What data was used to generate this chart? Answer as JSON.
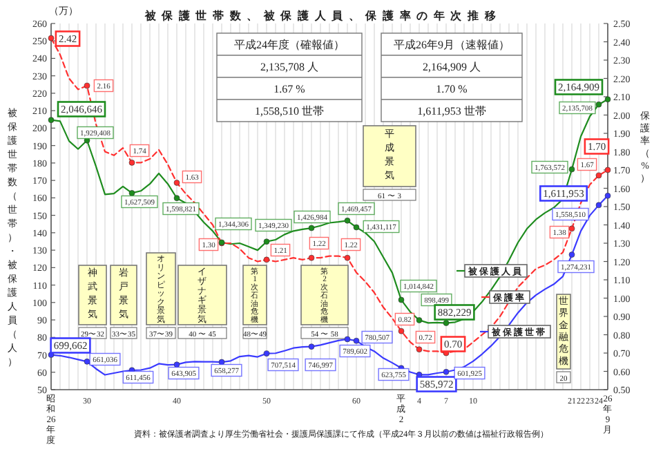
{
  "chart_data": {
    "type": "line",
    "title": "被保護世帯数、被保護人員、保護率の年次推移",
    "ylabel": "被保護世帯数（世帯）・被保護人員（人）",
    "y2label": "保護率（%）",
    "categories": [
      "昭和26年度",
      null,
      null,
      null,
      "30",
      null,
      null,
      null,
      null,
      null,
      null,
      null,
      null,
      null,
      "40",
      null,
      null,
      null,
      null,
      null,
      null,
      null,
      null,
      null,
      "50",
      null,
      null,
      null,
      null,
      null,
      null,
      null,
      null,
      null,
      "60",
      null,
      null,
      null,
      null,
      "平成2",
      null,
      "4",
      null,
      null,
      "7",
      null,
      null,
      "10",
      null,
      null,
      null,
      null,
      null,
      null,
      null,
      null,
      null,
      null,
      "21",
      "22",
      "23",
      "24",
      "26年9月"
    ],
    "ylim": [
      50,
      260
    ],
    "yticks": [
      50,
      60,
      70,
      80,
      90,
      100,
      110,
      120,
      130,
      140,
      150,
      160,
      170,
      180,
      190,
      200,
      210,
      220,
      230,
      240,
      250,
      260
    ],
    "y2lim": [
      0.5,
      2.5
    ],
    "y2ticks": [
      {
        "value": 0.5,
        "label": "0.50"
      },
      {
        "value": 0.6,
        "label": "0.60"
      },
      {
        "value": 0.7,
        "label": "0.70"
      },
      {
        "value": 0.8,
        "label": "0.80"
      },
      {
        "value": 0.9,
        "label": "0.90"
      },
      {
        "value": 1.0,
        "label": "1.00"
      },
      {
        "value": 1.1,
        "label": "1.10"
      },
      {
        "value": 1.2,
        "label": "1.20"
      },
      {
        "value": 1.3,
        "label": "1.30"
      },
      {
        "value": 1.4,
        "label": "1.40"
      },
      {
        "value": 1.5,
        "label": "1.50"
      },
      {
        "value": 1.6,
        "label": "1.60"
      },
      {
        "value": 1.7,
        "label": "1.70"
      },
      {
        "value": 1.8,
        "label": "1.80"
      },
      {
        "value": 1.9,
        "label": "1.90"
      },
      {
        "value": 2.0,
        "label": "2.00"
      },
      {
        "value": 2.1,
        "label": "2.10"
      },
      {
        "value": 2.2,
        "label": "2.20"
      },
      {
        "value": 2.3,
        "label": "2.30"
      },
      {
        "value": 2.4,
        "label": "2.40"
      },
      {
        "value": 2.5,
        "label": "2.50"
      }
    ],
    "grid": "x",
    "legend": "bottom right",
    "series": [
      {
        "name": "被保護人員",
        "color": "#1e8c1e",
        "line_style": "solid",
        "values": [
          204.66,
          204,
          192.6,
          188,
          192.94,
          178,
          162,
          162.5,
          166.5,
          162.75,
          164,
          168,
          174,
          168,
          159.88,
          157,
          152,
          146,
          141,
          134.43,
          133.5,
          134,
          132,
          130,
          134.92,
          136,
          139,
          141,
          142,
          142.7,
          144,
          145.7,
          146.2,
          146.95,
          143.11,
          140,
          135,
          126,
          117,
          101.48,
          94.6,
          89.85,
          88.3,
          88.5,
          88.22,
          88.7,
          90.5,
          94.7,
          100.4,
          107.2,
          114.8,
          124.3,
          134.4,
          142.3,
          147.6,
          151.4,
          154.4,
          159.3,
          176.36,
          195.2,
          206.7,
          213.57,
          216.49
        ]
      },
      {
        "name": "保護率",
        "color": "#ff3030",
        "line_style": "dashed",
        "axis": "y2",
        "values": [
          2.42,
          2.33,
          2.2,
          2.14,
          2.16,
          1.95,
          1.8,
          1.78,
          1.82,
          1.74,
          1.74,
          1.76,
          1.81,
          1.73,
          1.63,
          1.57,
          1.52,
          1.46,
          1.4,
          1.3,
          1.3,
          1.27,
          1.22,
          1.2,
          1.21,
          1.2,
          1.21,
          1.22,
          1.21,
          1.22,
          1.22,
          1.23,
          1.23,
          1.22,
          1.14,
          1.09,
          1.03,
          0.95,
          0.89,
          0.82,
          0.76,
          0.72,
          0.71,
          0.71,
          0.7,
          0.71,
          0.72,
          0.76,
          0.8,
          0.84,
          0.9,
          0.98,
          1.06,
          1.11,
          1.16,
          1.18,
          1.21,
          1.25,
          1.38,
          1.52,
          1.62,
          1.67,
          1.7
        ],
        "value_labels": [
          "2.42",
          null,
          null,
          null,
          "2.16",
          null,
          null,
          null,
          null,
          "1.74",
          null,
          null,
          null,
          null,
          "1.63",
          null,
          null,
          null,
          null,
          "1.30",
          null,
          null,
          null,
          null,
          "1.21",
          null,
          null,
          null,
          null,
          "1.22",
          null,
          null,
          null,
          "1.22",
          null,
          null,
          null,
          null,
          null,
          "0.82",
          null,
          "0.72",
          null,
          null,
          "0.70",
          null,
          null,
          null,
          null,
          null,
          null,
          null,
          null,
          null,
          null,
          null,
          null,
          null,
          "1.38",
          null,
          null,
          "1.67",
          "1.70"
        ]
      },
      {
        "name": "被保護世帯",
        "color": "#3a3aff",
        "line_style": "solid",
        "values": [
          69.97,
          69.5,
          68.5,
          67.3,
          66.1,
          62,
          58.5,
          59.5,
          60.5,
          61.15,
          61.3,
          62.4,
          64.9,
          64.2,
          64.39,
          65.7,
          66.1,
          66.0,
          66.0,
          65.83,
          66.5,
          69.0,
          69.6,
          68.8,
          70.75,
          70.9,
          72.3,
          73.9,
          74.5,
          74.7,
          75.6,
          76.9,
          78.2,
          78.96,
          78.05,
          74.6,
          72.0,
          68.1,
          65.4,
          62.38,
          60.1,
          58.6,
          58.6,
          59.5,
          60.19,
          61.3,
          63.1,
          66.3,
          70.4,
          75.1,
          80.5,
          87.1,
          94.1,
          99.9,
          104.2,
          107.6,
          110.5,
          114.9,
          127.42,
          141.0,
          149.9,
          155.85,
          161.2
        ]
      }
    ],
    "annotations": [
      "（万）",
      "平成24年度（確報値）",
      "2,135,708 人",
      "1.67 %",
      "1,558,510 世帯",
      "平成26年9月（速報値）",
      "2,164,909 人",
      "1.70 %",
      "1,611,953 世帯",
      "神武景気",
      "29〜32",
      "岩戸景気",
      "33〜35",
      "オリンピック景気",
      "37〜39",
      "イザナギ景気",
      "40 〜 45",
      "第1次石油危機",
      "48〜49",
      "第2次石油危機",
      "54 〜 58",
      "平成景気",
      "61 〜 3",
      "世界金融危機",
      "20",
      "資料：被保護者調査より厚生労働省社会・援護局保護課にて作成（平成24年３月以前の数値は福祉行政報告例）",
      "2,046,646",
      "1,929,408",
      "1,627,509",
      "1,598,821",
      "1,344,306",
      "1,349,230",
      "1,426,984",
      "1,469,457",
      "1,431,117",
      "1,014,842",
      "898,499",
      "882,229",
      "1,763,572",
      "2,135,708",
      "2,164,909",
      "699,662",
      "661,036",
      "611,456",
      "643,905",
      "658,277",
      "707,514",
      "746,997",
      "789,602",
      "780,507",
      "623,755",
      "585,972",
      "601,925",
      "1,274,231",
      "1,558,510",
      "1,611,953"
    ]
  }
}
